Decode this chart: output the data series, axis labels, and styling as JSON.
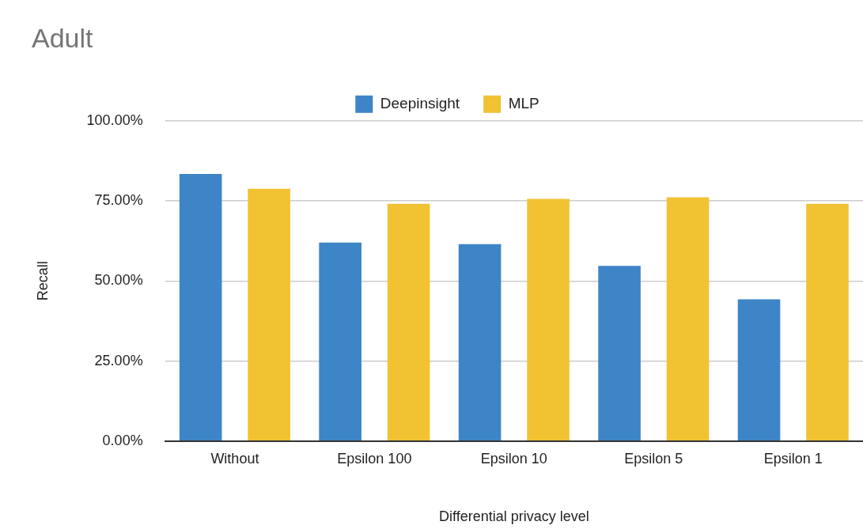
{
  "chart_data": {
    "type": "bar",
    "title": "Adult",
    "xlabel": "Differential privacy level",
    "ylabel": "Recall",
    "categories": [
      "Without",
      "Epsilon 100",
      "Epsilon 10",
      "Epsilon 5",
      "Epsilon 1"
    ],
    "series": [
      {
        "name": "Deepinsight",
        "color": "#3d85c6",
        "values": [
          83.4,
          62.0,
          61.5,
          54.7,
          44.3
        ]
      },
      {
        "name": "MLP",
        "color": "#f1c232",
        "values": [
          78.8,
          74.1,
          75.6,
          76.1,
          74.1
        ]
      }
    ],
    "ylim": [
      0,
      100
    ],
    "yticks": [
      {
        "value": 0,
        "label": "0.00%"
      },
      {
        "value": 25,
        "label": "25.00%"
      },
      {
        "value": 50,
        "label": "50.00%"
      },
      {
        "value": 75,
        "label": "75.00%"
      },
      {
        "value": 100,
        "label": "100.00%"
      }
    ],
    "grid": "y",
    "legend": "top"
  }
}
